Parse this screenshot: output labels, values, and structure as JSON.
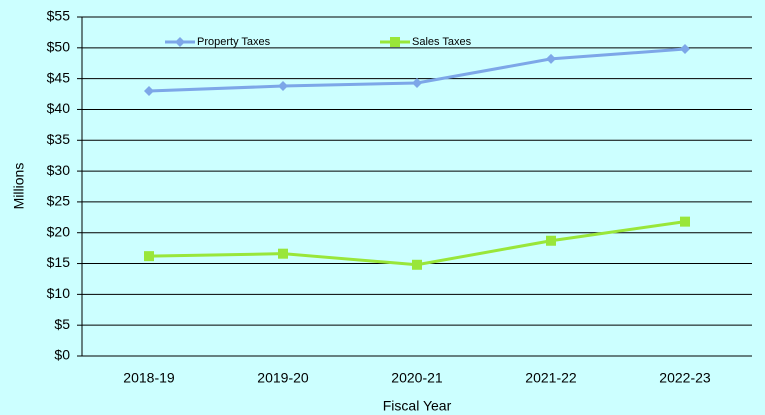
{
  "chart_data": {
    "type": "line",
    "x_label": "Fiscal Year",
    "y_label": "Millions",
    "categories": [
      "2018-19",
      "2019-20",
      "2020-21",
      "2021-22",
      "2022-23"
    ],
    "series": [
      {
        "name": "Property Taxes",
        "color": "#7da7e8",
        "marker": "diamond",
        "values": [
          43.0,
          43.8,
          44.3,
          48.2,
          49.8
        ]
      },
      {
        "name": "Sales Taxes",
        "color": "#99e63a",
        "marker": "square",
        "values": [
          16.2,
          16.6,
          14.8,
          18.7,
          21.8
        ]
      }
    ],
    "ylim": [
      0,
      55
    ],
    "yticks": [
      {
        "value": 0,
        "label": "$0"
      },
      {
        "value": 5,
        "label": "$5"
      },
      {
        "value": 10,
        "label": "$10"
      },
      {
        "value": 15,
        "label": "$15"
      },
      {
        "value": 20,
        "label": "$20"
      },
      {
        "value": 25,
        "label": "$25"
      },
      {
        "value": 30,
        "label": "$30"
      },
      {
        "value": 35,
        "label": "$35"
      },
      {
        "value": 40,
        "label": "$40"
      },
      {
        "value": 45,
        "label": "$45"
      },
      {
        "value": 50,
        "label": "$50"
      },
      {
        "value": 55,
        "label": "$55"
      }
    ],
    "grid": true,
    "legend": "top"
  }
}
